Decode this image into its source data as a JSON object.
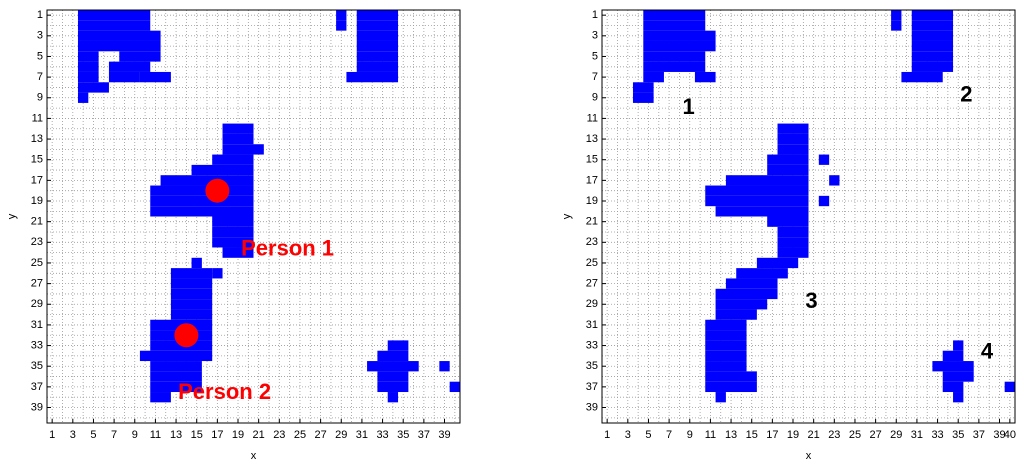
{
  "chart_data": [
    {
      "type": "raster",
      "xlabel": "x",
      "ylabel": "y",
      "xlim": [
        0.5,
        40.5
      ],
      "ylim": [
        0.5,
        40.5
      ],
      "xticks": [
        1,
        3,
        5,
        7,
        9,
        11,
        13,
        15,
        17,
        19,
        21,
        23,
        25,
        27,
        29,
        31,
        33,
        35,
        37,
        39
      ],
      "yticks": [
        1,
        3,
        5,
        7,
        9,
        11,
        13,
        15,
        17,
        19,
        21,
        23,
        25,
        27,
        29,
        31,
        33,
        35,
        37,
        39
      ],
      "grid": true,
      "color": "#0000ff",
      "marker_color": "#ff0000",
      "annotation_color": "#ff0000",
      "runs": [
        [
          1,
          4,
          10
        ],
        [
          2,
          4,
          10
        ],
        [
          3,
          4,
          11
        ],
        [
          4,
          4,
          11
        ],
        [
          5,
          4,
          5
        ],
        [
          5,
          8,
          11
        ],
        [
          6,
          4,
          5
        ],
        [
          6,
          7,
          10
        ],
        [
          7,
          4,
          5
        ],
        [
          7,
          7,
          9
        ],
        [
          7,
          10,
          12
        ],
        [
          8,
          4,
          6
        ],
        [
          9,
          4,
          4
        ],
        [
          1,
          29,
          29
        ],
        [
          2,
          29,
          29
        ],
        [
          1,
          31,
          34
        ],
        [
          2,
          31,
          34
        ],
        [
          3,
          31,
          34
        ],
        [
          4,
          31,
          34
        ],
        [
          5,
          31,
          34
        ],
        [
          6,
          31,
          34
        ],
        [
          7,
          30,
          34
        ],
        [
          12,
          18,
          20
        ],
        [
          13,
          18,
          20
        ],
        [
          14,
          18,
          21
        ],
        [
          15,
          17,
          20
        ],
        [
          16,
          15,
          20
        ],
        [
          17,
          12,
          20
        ],
        [
          18,
          11,
          20
        ],
        [
          19,
          11,
          20
        ],
        [
          20,
          11,
          20
        ],
        [
          21,
          17,
          20
        ],
        [
          22,
          17,
          20
        ],
        [
          23,
          17,
          20
        ],
        [
          24,
          18,
          20
        ],
        [
          25,
          15,
          15
        ],
        [
          26,
          13,
          16
        ],
        [
          26,
          17,
          17
        ],
        [
          27,
          13,
          16
        ],
        [
          28,
          13,
          16
        ],
        [
          29,
          13,
          16
        ],
        [
          30,
          13,
          16
        ],
        [
          31,
          11,
          16
        ],
        [
          32,
          11,
          16
        ],
        [
          33,
          11,
          16
        ],
        [
          34,
          10,
          16
        ],
        [
          35,
          11,
          15
        ],
        [
          36,
          11,
          15
        ],
        [
          37,
          11,
          15
        ],
        [
          38,
          11,
          12
        ],
        [
          33,
          34,
          35
        ],
        [
          34,
          33,
          35
        ],
        [
          35,
          32,
          36
        ],
        [
          36,
          33,
          35
        ],
        [
          37,
          33,
          35
        ],
        [
          38,
          34,
          34
        ],
        [
          35,
          39,
          39
        ],
        [
          37,
          40,
          40
        ]
      ],
      "markers": [
        {
          "x": 17,
          "y": 18
        },
        {
          "x": 14,
          "y": 32
        }
      ],
      "annotations": [
        "Person 1",
        "Person 2"
      ]
    },
    {
      "type": "raster",
      "xlabel": "x",
      "ylabel": "y",
      "xlim": [
        0.5,
        40.5
      ],
      "ylim": [
        0.5,
        40.5
      ],
      "xticks": [
        1,
        3,
        5,
        7,
        9,
        11,
        13,
        15,
        17,
        19,
        21,
        23,
        25,
        27,
        29,
        31,
        33,
        35,
        37,
        39,
        40
      ],
      "yticks": [
        1,
        3,
        5,
        7,
        9,
        11,
        13,
        15,
        17,
        19,
        21,
        23,
        25,
        27,
        29,
        31,
        33,
        35,
        37,
        39
      ],
      "grid": true,
      "color": "#0000ff",
      "annotation_color": "#000000",
      "runs": [
        [
          1,
          5,
          10
        ],
        [
          2,
          5,
          10
        ],
        [
          3,
          5,
          11
        ],
        [
          4,
          5,
          11
        ],
        [
          5,
          5,
          10
        ],
        [
          6,
          5,
          10
        ],
        [
          7,
          5,
          6
        ],
        [
          7,
          10,
          11
        ],
        [
          8,
          4,
          5
        ],
        [
          9,
          4,
          5
        ],
        [
          1,
          29,
          29
        ],
        [
          2,
          29,
          29
        ],
        [
          1,
          31,
          34
        ],
        [
          2,
          31,
          34
        ],
        [
          3,
          31,
          34
        ],
        [
          4,
          31,
          34
        ],
        [
          5,
          31,
          34
        ],
        [
          6,
          31,
          34
        ],
        [
          7,
          30,
          33
        ],
        [
          12,
          18,
          20
        ],
        [
          13,
          18,
          20
        ],
        [
          14,
          18,
          20
        ],
        [
          15,
          17,
          20
        ],
        [
          15,
          22,
          22
        ],
        [
          16,
          17,
          20
        ],
        [
          17,
          13,
          20
        ],
        [
          17,
          23,
          23
        ],
        [
          18,
          11,
          20
        ],
        [
          19,
          11,
          20
        ],
        [
          19,
          22,
          22
        ],
        [
          20,
          12,
          20
        ],
        [
          21,
          17,
          20
        ],
        [
          22,
          18,
          20
        ],
        [
          23,
          18,
          20
        ],
        [
          24,
          18,
          20
        ],
        [
          25,
          16,
          19
        ],
        [
          26,
          14,
          18
        ],
        [
          27,
          13,
          17
        ],
        [
          28,
          12,
          17
        ],
        [
          29,
          12,
          16
        ],
        [
          30,
          12,
          15
        ],
        [
          31,
          11,
          14
        ],
        [
          32,
          11,
          14
        ],
        [
          33,
          11,
          14
        ],
        [
          34,
          11,
          14
        ],
        [
          35,
          11,
          14
        ],
        [
          36,
          11,
          15
        ],
        [
          37,
          11,
          15
        ],
        [
          38,
          12,
          12
        ],
        [
          33,
          35,
          35
        ],
        [
          34,
          34,
          35
        ],
        [
          35,
          33,
          36
        ],
        [
          36,
          34,
          36
        ],
        [
          37,
          34,
          35
        ],
        [
          38,
          35,
          35
        ],
        [
          37,
          40,
          40
        ]
      ],
      "annotations": [
        "1",
        "2",
        "3",
        "4"
      ]
    }
  ]
}
